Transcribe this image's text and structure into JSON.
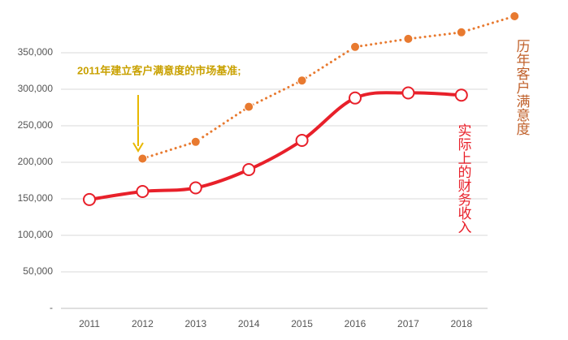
{
  "chart_data": {
    "type": "line",
    "annotation": "2011年建立客户满意度的市场基准;",
    "categories": [
      "2011",
      "2012",
      "2013",
      "2014",
      "2015",
      "2016",
      "2017",
      "2018",
      null
    ],
    "series": [
      {
        "name": "实际上的财务收入",
        "color": "#e8202a",
        "style": "solid",
        "values": [
          149000,
          160000,
          165000,
          190000,
          230000,
          288000,
          295000,
          292000,
          null
        ]
      },
      {
        "name": "历年客户满意度",
        "color": "#e87a30",
        "style": "dotted",
        "values": [
          null,
          205000,
          228000,
          276000,
          312000,
          358000,
          369000,
          378000,
          400000
        ]
      }
    ],
    "ylim": [
      0,
      410000
    ],
    "yticks": [
      {
        "value": 0,
        "label": "-"
      },
      {
        "value": 50000,
        "label": "50,000"
      },
      {
        "value": 100000,
        "label": "100,000"
      },
      {
        "value": 150000,
        "label": "150,000"
      },
      {
        "value": 200000,
        "label": "200,000"
      },
      {
        "value": 250000,
        "label": "250,000"
      },
      {
        "value": 300000,
        "label": "300,000"
      },
      {
        "value": 350000,
        "label": "350,000"
      }
    ],
    "grid": true
  }
}
